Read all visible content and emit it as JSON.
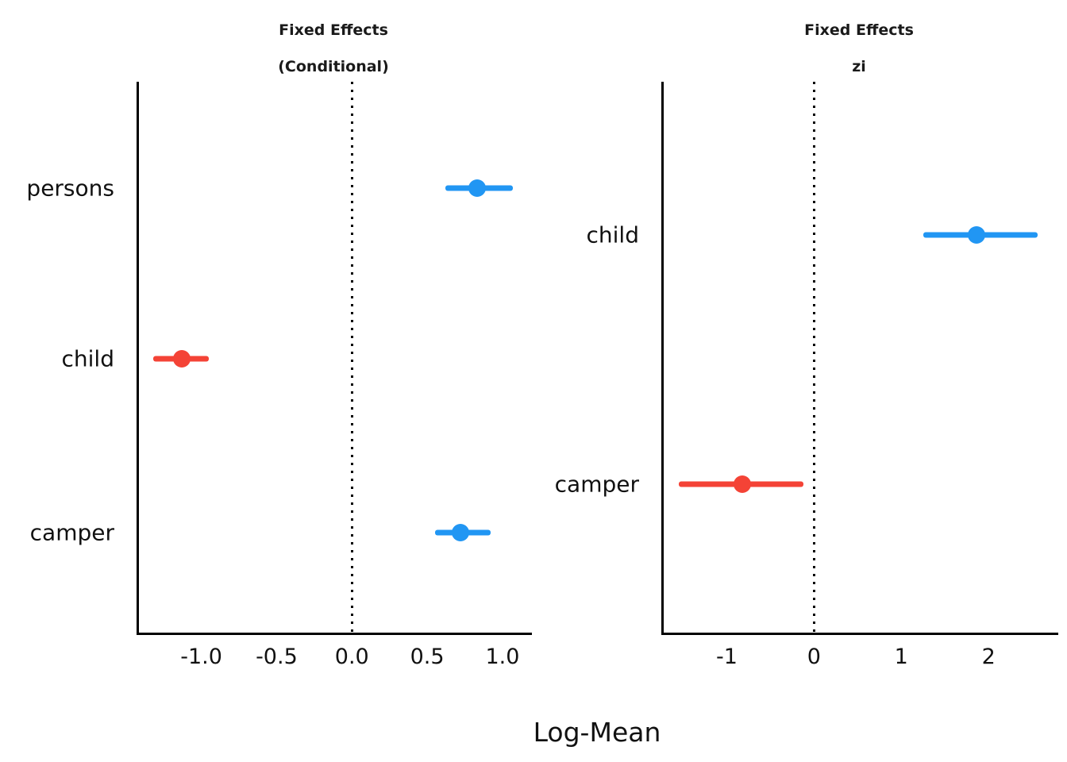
{
  "figure": {
    "xlabel": "Log-Mean",
    "colors": {
      "positive": "#2196F3",
      "negative": "#F44336",
      "axis": "#000000",
      "title": "#1a1a1a"
    }
  },
  "chart_data": [
    {
      "type": "scatter",
      "subtype": "pointrange-forest",
      "title_lines": [
        "Fixed Effects",
        "(Conditional)"
      ],
      "categories": [
        "persons",
        "child",
        "camper"
      ],
      "rows": [
        {
          "label": "persons",
          "estimate": 0.83,
          "ci_low": 0.62,
          "ci_high": 1.07,
          "direction": "positive"
        },
        {
          "label": "child",
          "estimate": -1.13,
          "ci_low": -1.32,
          "ci_high": -0.95,
          "direction": "negative"
        },
        {
          "label": "camper",
          "estimate": 0.72,
          "ci_low": 0.55,
          "ci_high": 0.92,
          "direction": "positive"
        }
      ],
      "x_ticks": [
        -1.0,
        -0.5,
        0.0,
        0.5,
        1.0
      ],
      "x_tick_labels": [
        "-1.0",
        "-0.5",
        "0.0",
        "0.5",
        "1.0"
      ],
      "xlim": [
        -1.43,
        1.19
      ],
      "zero_line": 0,
      "grid": false,
      "row_fractions": [
        0.193,
        0.502,
        0.817
      ]
    },
    {
      "type": "scatter",
      "subtype": "pointrange-forest",
      "title_lines": [
        "Fixed Effects",
        "zi"
      ],
      "categories": [
        "child",
        "camper"
      ],
      "rows": [
        {
          "label": "child",
          "estimate": 1.86,
          "ci_low": 1.25,
          "ci_high": 2.56,
          "direction": "positive"
        },
        {
          "label": "camper",
          "estimate": -0.82,
          "ci_low": -1.55,
          "ci_high": -0.12,
          "direction": "negative"
        }
      ],
      "x_ticks": [
        -1,
        0,
        1,
        2
      ],
      "x_tick_labels": [
        "-1",
        "0",
        "1",
        "2"
      ],
      "xlim": [
        -1.75,
        2.79
      ],
      "zero_line": 0,
      "grid": false,
      "row_fractions": [
        0.278,
        0.729
      ]
    }
  ]
}
